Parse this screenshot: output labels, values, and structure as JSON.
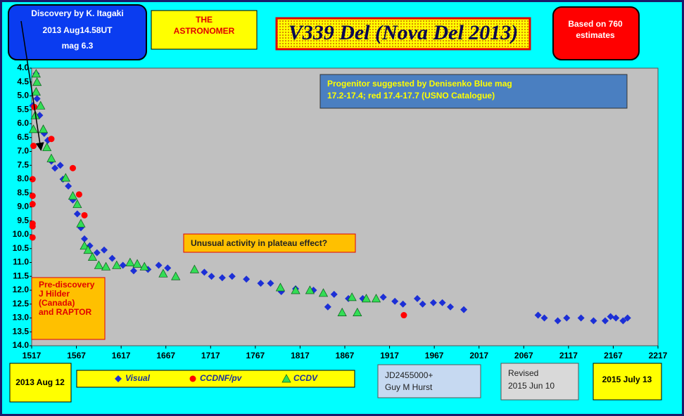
{
  "chart_data": {
    "type": "scatter",
    "title": "V339 Del (Nova Del 2013)",
    "xlim": [
      1517,
      2217
    ],
    "xticks": [
      1517,
      1567,
      1617,
      1667,
      1717,
      1767,
      1817,
      1867,
      1917,
      1967,
      2017,
      2067,
      2117,
      2167,
      2217
    ],
    "ylim": [
      4,
      14
    ],
    "invert_y": true,
    "yticks": [
      {
        "value": 4,
        "label": "4.0"
      },
      4.5,
      {
        "value": 5,
        "label": "5.0"
      },
      5.5,
      {
        "value": 6,
        "label": "6.0"
      },
      6.5,
      {
        "value": 7,
        "label": "7.0"
      },
      7.5,
      {
        "value": 8,
        "label": "8.0"
      },
      8.5,
      {
        "value": 9,
        "label": "9.0"
      },
      9.5,
      {
        "value": 10,
        "label": "10.0"
      },
      10.5,
      {
        "value": 11,
        "label": "11.0"
      },
      11.5,
      {
        "value": 12,
        "label": "12.0"
      },
      12.5,
      {
        "value": 13,
        "label": "13.0"
      },
      13.5,
      {
        "value": 14,
        "label": "14.0"
      }
    ],
    "grid": false,
    "series": [
      {
        "name": "Visual",
        "color": "#1c2fd6",
        "marker": "diamond",
        "x": [
          1522,
          1518,
          1523,
          1526,
          1531,
          1535,
          1539,
          1543,
          1549,
          1552,
          1558,
          1563,
          1568,
          1572,
          1576,
          1582,
          1590,
          1598,
          1607,
          1619,
          1631,
          1647,
          1659,
          1669,
          1710,
          1718,
          1730,
          1741,
          1757,
          1773,
          1784,
          1796,
          1812,
          1832,
          1848,
          1855,
          1871,
          1887,
          1910,
          1923,
          1932,
          1948,
          1954,
          1966,
          1976,
          1985,
          2000,
          2083,
          2090,
          2105,
          2115,
          2131,
          2145,
          2158,
          2164,
          2170,
          2178,
          2183
        ],
        "values": [
          4.2,
          5.35,
          5.1,
          5.7,
          6.35,
          6.6,
          7.35,
          7.6,
          7.5,
          8.0,
          8.25,
          8.75,
          9.25,
          9.75,
          10.15,
          10.4,
          10.65,
          10.55,
          10.85,
          11.1,
          11.3,
          11.25,
          11.1,
          11.2,
          11.35,
          11.5,
          11.55,
          11.5,
          11.6,
          11.75,
          11.75,
          12.05,
          11.95,
          12.0,
          12.6,
          12.15,
          12.3,
          12.3,
          12.25,
          12.4,
          12.5,
          12.3,
          12.5,
          12.45,
          12.45,
          12.6,
          12.7,
          12.9,
          13.0,
          13.1,
          13.0,
          13.0,
          13.1,
          13.1,
          12.95,
          13.0,
          13.1,
          13.0
        ]
      },
      {
        "name": "CCDNF/pv",
        "color": "#ff0000",
        "marker": "circle",
        "x": [
          1518,
          1518,
          1518,
          1518,
          1518,
          1518,
          1519,
          1520,
          1539,
          1563,
          1570,
          1576,
          1933
        ],
        "values": [
          8.0,
          8.6,
          8.9,
          9.6,
          9.7,
          10.1,
          6.8,
          5.4,
          6.55,
          7.6,
          8.55,
          9.3,
          12.9
        ]
      },
      {
        "name": "CCDV",
        "color": "#33dd55",
        "marker": "triangle",
        "x": [
          1522,
          1519,
          1521,
          1522,
          1523,
          1527,
          1530,
          1534,
          1539,
          1555,
          1563,
          1568,
          1572,
          1576,
          1580,
          1585,
          1592,
          1600,
          1612,
          1627,
          1635,
          1643,
          1664,
          1678,
          1699,
          1795,
          1812,
          1828,
          1843,
          1864,
          1875,
          1881,
          1891,
          1902
        ],
        "values": [
          4.2,
          6.2,
          5.7,
          4.85,
          4.5,
          5.35,
          6.2,
          6.85,
          7.25,
          7.95,
          8.6,
          8.9,
          9.6,
          10.4,
          10.55,
          10.8,
          11.1,
          11.15,
          11.1,
          11.0,
          11.05,
          11.15,
          11.4,
          11.5,
          11.25,
          11.9,
          12.0,
          12.0,
          12.1,
          12.8,
          12.25,
          12.8,
          12.3,
          12.3
        ]
      }
    ],
    "annotations": {
      "discovery": [
        "Discovery by K. Itagaki",
        "2013 Aug14.58UT",
        "mag 6.3"
      ],
      "publisher": [
        "THE",
        "ASTRONOMER"
      ],
      "estimates": [
        "Based on 760",
        "estimates"
      ],
      "progenitor": [
        "Progenitor suggested by Denisenko  Blue mag",
        "17.2-17.4; red  17.4-17.7 (USNO Catalogue)"
      ],
      "plateau": "Unusual activity in plateau effect?",
      "prediscovery": [
        "Pre-discovery",
        "J Hilder",
        "(Canada)",
        "and RAPTOR"
      ],
      "start_date": "2013 Aug 12",
      "end_date": "2015 July 13",
      "observer": [
        "JD2455000+",
        "Guy M  Hurst"
      ],
      "revised": [
        "Revised",
        "2015 Jun 10"
      ]
    }
  }
}
